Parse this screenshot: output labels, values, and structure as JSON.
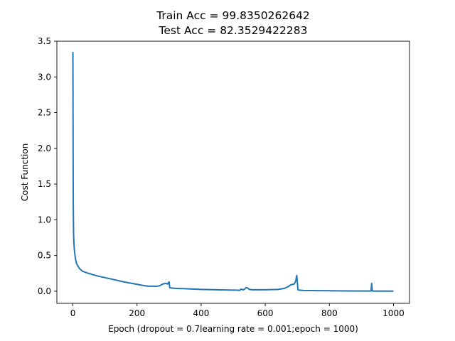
{
  "chart_data": {
    "type": "line",
    "title_lines": [
      "Train Acc = 99.8350262642",
      "Test Acc = 82.3529422283"
    ],
    "xlabel": "Epoch (dropout = 0.7learning rate = 0.001;epoch = 1000)",
    "ylabel": "Cost Function",
    "xlim": [
      -50,
      1050
    ],
    "ylim": [
      -0.17,
      3.5
    ],
    "x_ticks": [
      0,
      200,
      400,
      600,
      800,
      1000
    ],
    "x_tick_labels": [
      "0",
      "200",
      "400",
      "600",
      "800",
      "1000"
    ],
    "y_ticks": [
      0.0,
      0.5,
      1.0,
      1.5,
      2.0,
      2.5,
      3.0,
      3.5
    ],
    "y_tick_labels": [
      "0.0",
      "0.5",
      "1.0",
      "1.5",
      "2.0",
      "2.5",
      "3.0",
      "3.5"
    ],
    "grid": false,
    "line_color": "#1f77b4",
    "series": [
      {
        "x": [
          0,
          1,
          2,
          3,
          5,
          8,
          12,
          20,
          30,
          45,
          60,
          80,
          100,
          130,
          160,
          190,
          220,
          235,
          250,
          260,
          270,
          280,
          290,
          295,
          300,
          302,
          305,
          320,
          350,
          400,
          450,
          500,
          510,
          520,
          525,
          530,
          535,
          540,
          545,
          550,
          560,
          600,
          640,
          660,
          670,
          680,
          690,
          695,
          698,
          700,
          702,
          705,
          720,
          760,
          800,
          850,
          900,
          930,
          932,
          933,
          934,
          936,
          940,
          960,
          1000
        ],
        "y": [
          3.35,
          1.3,
          0.82,
          0.68,
          0.56,
          0.45,
          0.38,
          0.32,
          0.28,
          0.255,
          0.235,
          0.21,
          0.19,
          0.16,
          0.13,
          0.105,
          0.08,
          0.07,
          0.07,
          0.068,
          0.075,
          0.1,
          0.11,
          0.1,
          0.13,
          0.05,
          0.045,
          0.04,
          0.035,
          0.025,
          0.02,
          0.015,
          0.015,
          0.012,
          0.03,
          0.02,
          0.025,
          0.05,
          0.045,
          0.025,
          0.02,
          0.02,
          0.025,
          0.04,
          0.06,
          0.09,
          0.1,
          0.14,
          0.22,
          0.14,
          0.02,
          0.015,
          0.01,
          0.008,
          0.006,
          0.004,
          0.003,
          0.003,
          0.11,
          0.05,
          0.005,
          0.003,
          0.002,
          0.002,
          0.001
        ]
      }
    ]
  }
}
